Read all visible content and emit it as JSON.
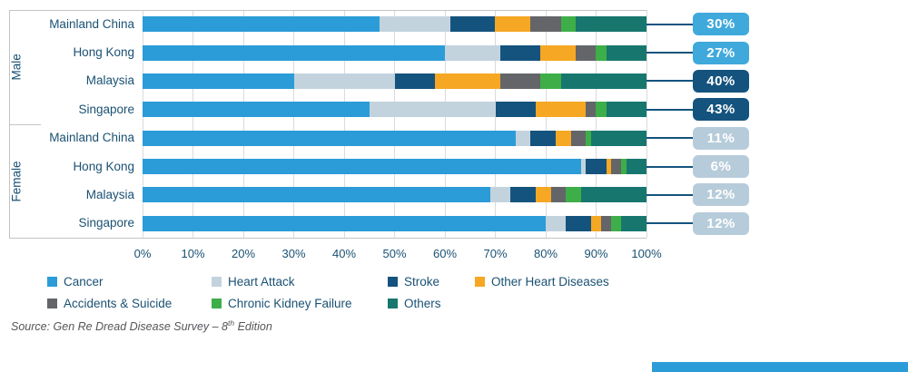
{
  "colors": {
    "accent_blue": "#2B9CD8",
    "navy": "#14537E",
    "text_navy": "#1A5173",
    "gridline": "#DBDBDB",
    "frame": "#C4C4C4",
    "source_text": "#55565A",
    "footer_stripe": "#2B9CD8",
    "badge_male_light": "#3FA9DC",
    "badge_male_dark": "#14537E",
    "badge_female": "#B7CCDA"
  },
  "chart_data": {
    "type": "bar",
    "stacked": true,
    "orientation": "horizontal",
    "unit": "%",
    "xlim": [
      0,
      100
    ],
    "x_ticks": [
      "0%",
      "10%",
      "20%",
      "30%",
      "40%",
      "50%",
      "60%",
      "70%",
      "80%",
      "90%",
      "100%"
    ],
    "grid": true,
    "legend_position": "bottom",
    "legend": [
      {
        "key": "cancer",
        "label": "Cancer",
        "color": "#2B9CD8"
      },
      {
        "key": "heart-attack",
        "label": "Heart Attack",
        "color": "#C3D3DE"
      },
      {
        "key": "stroke",
        "label": "Stroke",
        "color": "#14537E"
      },
      {
        "key": "other-heart-diseases",
        "label": "Other Heart Diseases",
        "color": "#F6A724"
      },
      {
        "key": "accidents-suicide",
        "label": "Accidents & Suicide",
        "color": "#636569"
      },
      {
        "key": "chronic-kidney-failure",
        "label": "Chronic Kidney Failure",
        "color": "#3EAE49"
      },
      {
        "key": "others",
        "label": "Others",
        "color": "#17776F"
      }
    ],
    "groups": [
      {
        "label": "Male",
        "rows": [
          {
            "label": "Mainland China",
            "values": [
              47,
              14,
              9,
              7,
              6,
              3,
              14
            ],
            "badge": "30%",
            "badge_color": "#3FA9DC"
          },
          {
            "label": "Hong Kong",
            "values": [
              60,
              11,
              8,
              7,
              4,
              2,
              8
            ],
            "badge": "27%",
            "badge_color": "#3FA9DC"
          },
          {
            "label": "Malaysia",
            "values": [
              30,
              20,
              8,
              13,
              8,
              4,
              17
            ],
            "badge": "40%",
            "badge_color": "#14537E"
          },
          {
            "label": "Singapore",
            "values": [
              45,
              25,
              8,
              10,
              2,
              2,
              8
            ],
            "badge": "43%",
            "badge_color": "#14537E"
          }
        ]
      },
      {
        "label": "Female",
        "rows": [
          {
            "label": "Mainland China",
            "values": [
              74,
              3,
              5,
              3,
              3,
              1,
              11
            ],
            "badge": "11%",
            "badge_color": "#B7CCDA"
          },
          {
            "label": "Hong Kong",
            "values": [
              87,
              1,
              4,
              1,
              2,
              1,
              4
            ],
            "badge": "6%",
            "badge_color": "#B7CCDA"
          },
          {
            "label": "Malaysia",
            "values": [
              69,
              4,
              5,
              3,
              3,
              3,
              13
            ],
            "badge": "12%",
            "badge_color": "#B7CCDA"
          },
          {
            "label": "Singapore",
            "values": [
              80,
              4,
              5,
              2,
              2,
              2,
              5
            ],
            "badge": "12%",
            "badge_color": "#B7CCDA"
          }
        ]
      }
    ]
  },
  "source": {
    "prefix": "Source: Gen Re Dread Disease Survey – 8",
    "superscript": "th",
    "suffix": " Edition"
  }
}
